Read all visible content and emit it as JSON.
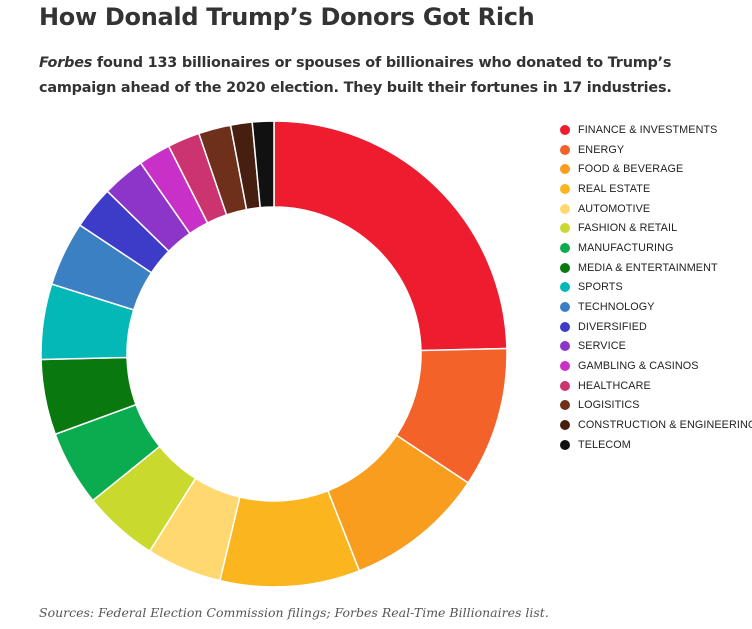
{
  "title": "How Donald Trump’s Donors Got Rich",
  "subtitle": {
    "em": "Forbes",
    "text": " found 133 billionaires or spouses of billionaires who donated to Trump’s campaign ahead of the 2020 election. They built their fortunes in 17 industries."
  },
  "source": "Sources: Federal Election Commission filings; Forbes Real-Time Billionaires list.",
  "chart_data": {
    "type": "pie",
    "donut": true,
    "legend_position": "right",
    "title": "How Donald Trump’s Donors Got Rich",
    "categories": [
      "FINANCE & INVESTMENTS",
      "ENERGY",
      "FOOD & BEVERAGE",
      "REAL ESTATE",
      "AUTOMOTIVE",
      "FASHION & RETAIL",
      "MANUFACTURING",
      "MEDIA & ENTERTAINMENT",
      "SPORTS",
      "TECHNOLOGY",
      "DIVERSIFIED",
      "SERVICE",
      "GAMBLING & CASINOS",
      "HEALTHCARE",
      "LOGISITICS",
      "CONSTRUCTION & ENGINEERING",
      "TELECOM"
    ],
    "values": [
      33,
      13,
      13,
      13,
      7,
      7,
      7,
      7,
      7,
      6,
      4,
      4,
      3,
      3,
      3,
      2,
      2
    ],
    "colors": [
      "#ed1c2e",
      "#f26229",
      "#f89d1d",
      "#fbb51f",
      "#ffd870",
      "#c9d92e",
      "#0bab4f",
      "#08780f",
      "#04b8b8",
      "#3a80c3",
      "#3d3cc8",
      "#8c35c8",
      "#c930c8",
      "#cc3470",
      "#6e2f1b",
      "#461f10",
      "#111111"
    ]
  }
}
